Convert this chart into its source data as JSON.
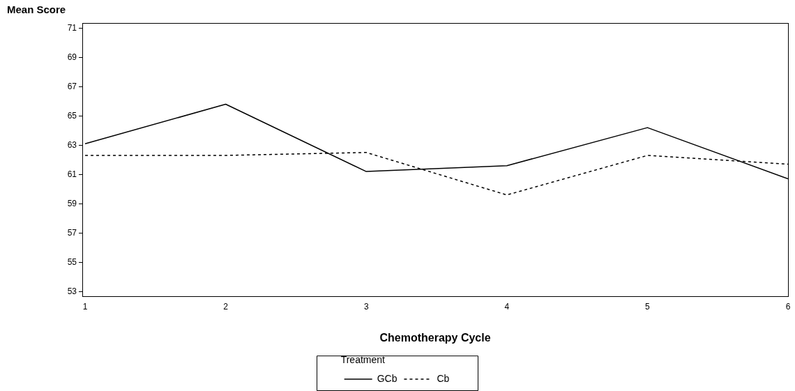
{
  "chart_data": {
    "type": "line",
    "ylabel": "Mean Score",
    "xlabel": "Chemotherapy Cycle",
    "legend_title": "Treatment",
    "legend": "bottom",
    "grid": false,
    "marker": "none",
    "x": [
      1,
      2,
      3,
      4,
      5,
      6
    ],
    "xlim": [
      0.98,
      6
    ],
    "xticks": [
      1,
      2,
      3,
      4,
      5,
      6
    ],
    "ylim": [
      52.65,
      71.35
    ],
    "yticks": [
      53,
      55,
      57,
      59,
      61,
      63,
      65,
      67,
      69,
      71
    ],
    "series": [
      {
        "name": "GCb",
        "color": "#000000",
        "line_style": "solid",
        "values": [
          63.1,
          65.8,
          61.2,
          61.6,
          64.2,
          60.7
        ]
      },
      {
        "name": "Cb",
        "color": "#000000",
        "line_style": "dashed",
        "values": [
          62.3,
          62.3,
          62.5,
          59.6,
          62.3,
          61.7
        ]
      }
    ]
  }
}
